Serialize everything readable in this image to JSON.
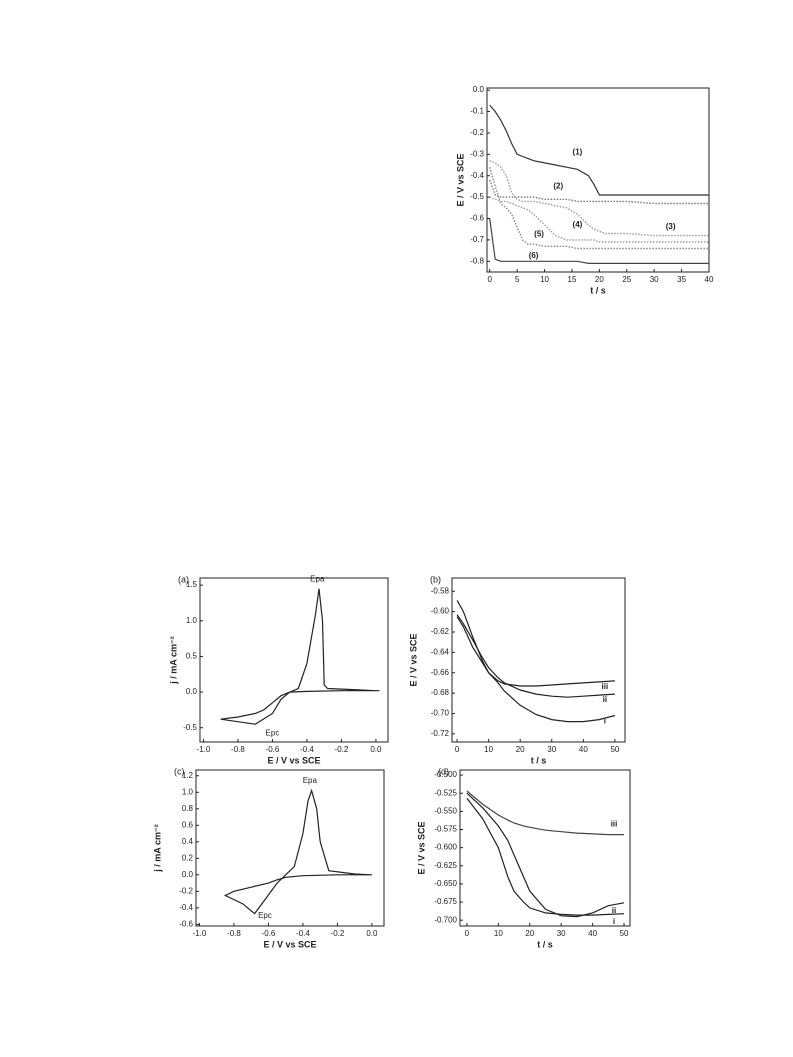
{
  "chart_data": [
    {
      "type": "line",
      "xlabel": "t / s",
      "ylabel": "E / V vs SCE",
      "xlim": [
        -0.5,
        40
      ],
      "ylim": [
        -0.85,
        0.01
      ],
      "xticks": [
        0,
        5,
        10,
        15,
        20,
        25,
        30,
        35,
        40
      ],
      "yticks": [
        {
          "value": 0,
          "label": "0.0"
        },
        -0.1,
        -0.2,
        -0.3,
        -0.4,
        -0.5,
        -0.6,
        -0.7,
        -0.8
      ],
      "series": [
        {
          "name": "(1)",
          "color": "#333333",
          "x": [
            0,
            1,
            2,
            3,
            4,
            5,
            6,
            7,
            8,
            10,
            12,
            14,
            16,
            18,
            19,
            20,
            21,
            25,
            30,
            35,
            40
          ],
          "values": [
            -0.07,
            -0.1,
            -0.14,
            -0.19,
            -0.25,
            -0.3,
            -0.31,
            -0.32,
            -0.33,
            -0.34,
            -0.35,
            -0.36,
            -0.37,
            -0.4,
            -0.44,
            -0.49,
            -0.49,
            -0.49,
            -0.49,
            -0.49,
            -0.49
          ]
        },
        {
          "name": "(2)",
          "color": "#777777",
          "x": [
            0,
            1,
            2,
            3,
            4,
            5,
            6,
            7,
            8,
            10,
            12,
            14,
            16,
            18,
            19,
            20,
            21,
            25,
            30,
            35,
            40
          ],
          "values": [
            -0.42,
            -0.49,
            -0.5,
            -0.5,
            -0.5,
            -0.5,
            -0.5,
            -0.5,
            -0.5,
            -0.51,
            -0.51,
            -0.51,
            -0.52,
            -0.52,
            -0.52,
            -0.52,
            -0.52,
            -0.52,
            -0.53,
            -0.53,
            -0.53
          ]
        },
        {
          "name": "(3)",
          "color": "#999999",
          "x": [
            0,
            1,
            2,
            3,
            4,
            5,
            6,
            7,
            8,
            10,
            12,
            14,
            16,
            18,
            19,
            20,
            21,
            25,
            30,
            35,
            40
          ],
          "values": [
            -0.33,
            -0.34,
            -0.36,
            -0.4,
            -0.48,
            -0.51,
            -0.52,
            -0.52,
            -0.52,
            -0.53,
            -0.54,
            -0.55,
            -0.58,
            -0.63,
            -0.65,
            -0.66,
            -0.67,
            -0.67,
            -0.68,
            -0.68,
            -0.68
          ]
        },
        {
          "name": "(4)",
          "color": "#999999",
          "x": [
            0,
            1,
            2,
            3,
            4,
            5,
            6,
            7,
            8,
            10,
            12,
            14,
            16,
            18,
            19,
            20,
            21,
            25,
            30,
            35,
            40
          ],
          "values": [
            -0.5,
            -0.51,
            -0.52,
            -0.52,
            -0.53,
            -0.54,
            -0.55,
            -0.56,
            -0.58,
            -0.63,
            -0.68,
            -0.7,
            -0.7,
            -0.7,
            -0.7,
            -0.71,
            -0.71,
            -0.71,
            -0.71,
            -0.71,
            -0.71
          ]
        },
        {
          "name": "(5)",
          "color": "#888888",
          "x": [
            0,
            1,
            2,
            3,
            4,
            5,
            6,
            7,
            8,
            10,
            12,
            14,
            16,
            18,
            19,
            20,
            21,
            25,
            30,
            35,
            40
          ],
          "values": [
            -0.36,
            -0.45,
            -0.53,
            -0.55,
            -0.58,
            -0.64,
            -0.7,
            -0.72,
            -0.72,
            -0.73,
            -0.73,
            -0.73,
            -0.74,
            -0.74,
            -0.74,
            -0.74,
            -0.74,
            -0.74,
            -0.74,
            -0.74,
            -0.74
          ]
        },
        {
          "name": "(6)",
          "color": "#444444",
          "x": [
            0,
            1,
            2,
            3,
            4,
            5,
            6,
            7,
            8,
            10,
            12,
            14,
            16,
            18,
            19,
            20,
            21,
            25,
            30,
            35,
            40
          ],
          "values": [
            -0.6,
            -0.79,
            -0.8,
            -0.8,
            -0.8,
            -0.8,
            -0.8,
            -0.8,
            -0.8,
            -0.8,
            -0.8,
            -0.8,
            -0.8,
            -0.81,
            -0.81,
            -0.81,
            -0.81,
            -0.81,
            -0.81,
            -0.81,
            -0.81
          ]
        }
      ]
    },
    {
      "type": "line",
      "panel_label": "(a)",
      "xlabel": "E / V vs SCE",
      "ylabel": "j / mA cm⁻²",
      "xlim": [
        -1.02,
        0.07
      ],
      "ylim": [
        -0.7,
        1.6
      ],
      "xticks": [
        {
          "value": -1,
          "label": "-1.0"
        },
        -0.8,
        -0.6,
        -0.4,
        -0.2,
        {
          "value": 0,
          "label": "0.0"
        }
      ],
      "yticks": [
        -0.5,
        {
          "value": 0,
          "label": "0.0"
        },
        0.5,
        {
          "value": 1,
          "label": "1.0"
        },
        1.5
      ],
      "annotations": [
        "Epa",
        "Epc"
      ],
      "series": [
        {
          "color": "#222222",
          "x": [
            0.02,
            -0.2,
            -0.4,
            -0.5,
            -0.55,
            -0.6,
            -0.65,
            -0.7,
            -0.8,
            -0.9,
            -0.7,
            -0.6,
            -0.55,
            -0.5,
            -0.45,
            -0.4,
            -0.35,
            -0.33,
            -0.31,
            -0.3,
            -0.28,
            -0.1,
            0.0
          ],
          "values": [
            0.02,
            0.02,
            0.01,
            0.0,
            -0.05,
            -0.15,
            -0.25,
            -0.3,
            -0.35,
            -0.38,
            -0.45,
            -0.3,
            -0.1,
            0.0,
            0.05,
            0.4,
            1.1,
            1.45,
            1.0,
            0.1,
            0.05,
            0.03,
            0.02
          ]
        }
      ]
    },
    {
      "type": "line",
      "panel_label": "(b)",
      "xlabel": "t / s",
      "ylabel": "E / V vs SCE",
      "xlim": [
        -1.6,
        53.2
      ],
      "ylim": [
        -0.728,
        -0.567
      ],
      "xticks": [
        0,
        10,
        20,
        30,
        40,
        50
      ],
      "yticks": [
        -0.58,
        {
          "value": -0.6,
          "label": "-0.60"
        },
        -0.62,
        -0.64,
        -0.66,
        -0.68,
        {
          "value": -0.7,
          "label": "-0.70"
        },
        -0.72
      ],
      "series": [
        {
          "name": "i",
          "color": "#222222",
          "x": [
            0,
            2,
            5,
            8,
            10,
            13,
            15,
            20,
            25,
            30,
            35,
            40,
            45,
            50
          ],
          "values": [
            -0.605,
            -0.615,
            -0.635,
            -0.65,
            -0.66,
            -0.67,
            -0.678,
            -0.692,
            -0.701,
            -0.706,
            -0.708,
            -0.708,
            -0.706,
            -0.702
          ]
        },
        {
          "name": "ii",
          "color": "#222222",
          "x": [
            0,
            2,
            5,
            8,
            10,
            13,
            15,
            20,
            25,
            30,
            35,
            40,
            45,
            50
          ],
          "values": [
            -0.603,
            -0.612,
            -0.628,
            -0.645,
            -0.655,
            -0.665,
            -0.67,
            -0.677,
            -0.681,
            -0.683,
            -0.684,
            -0.683,
            -0.682,
            -0.681
          ]
        },
        {
          "name": "iii",
          "color": "#222222",
          "x": [
            0,
            2,
            5,
            8,
            10,
            13,
            15,
            20,
            25,
            30,
            35,
            40,
            45,
            50
          ],
          "values": [
            -0.589,
            -0.6,
            -0.625,
            -0.648,
            -0.66,
            -0.668,
            -0.671,
            -0.673,
            -0.673,
            -0.672,
            -0.671,
            -0.67,
            -0.669,
            -0.668
          ]
        }
      ]
    },
    {
      "type": "line",
      "panel_label": "(c)",
      "xlabel": "E / V vs SCE",
      "ylabel": "j / mA cm⁻²",
      "xlim": [
        -1.02,
        0.07
      ],
      "ylim": [
        -0.62,
        1.27
      ],
      "xticks": [
        {
          "value": -1,
          "label": "-1.0"
        },
        -0.8,
        -0.6,
        -0.4,
        -0.2,
        {
          "value": 0,
          "label": "0.0"
        }
      ],
      "yticks": [
        -0.6,
        -0.4,
        -0.2,
        {
          "value": 0,
          "label": "0.0"
        },
        0.2,
        0.4,
        0.6,
        0.8,
        {
          "value": 1,
          "label": "1.0"
        },
        1.2
      ],
      "annotations": [
        "Epa",
        "Epc"
      ],
      "series": [
        {
          "color": "#222222",
          "x": [
            0.0,
            -0.2,
            -0.4,
            -0.5,
            -0.55,
            -0.6,
            -0.7,
            -0.8,
            -0.85,
            -0.75,
            -0.68,
            -0.62,
            -0.55,
            -0.5,
            -0.45,
            -0.4,
            -0.37,
            -0.35,
            -0.32,
            -0.3,
            -0.25,
            -0.1,
            0.0
          ],
          "values": [
            0.0,
            0.0,
            -0.01,
            -0.03,
            -0.06,
            -0.1,
            -0.15,
            -0.2,
            -0.25,
            -0.35,
            -0.47,
            -0.3,
            -0.1,
            0.0,
            0.1,
            0.5,
            0.9,
            1.02,
            0.8,
            0.4,
            0.05,
            0.01,
            0.0
          ]
        }
      ]
    },
    {
      "type": "line",
      "panel_label": "(d)",
      "xlabel": "t / s",
      "ylabel": "E / V vs SCE",
      "xlim": [
        -2.2,
        51.9
      ],
      "ylim": [
        -0.708,
        -0.493
      ],
      "xticks": [
        0,
        10,
        20,
        30,
        40,
        50
      ],
      "yticks": [
        {
          "value": -0.5,
          "label": "-0.500"
        },
        -0.525,
        {
          "value": -0.55,
          "label": "-0.550"
        },
        -0.575,
        {
          "value": -0.6,
          "label": "-0.600"
        },
        -0.625,
        {
          "value": -0.65,
          "label": "-0.650"
        },
        -0.675,
        {
          "value": -0.7,
          "label": "-0.700"
        }
      ],
      "series": [
        {
          "name": "i",
          "color": "#222222",
          "x": [
            0,
            5,
            10,
            13,
            15,
            18,
            20,
            25,
            30,
            35,
            40,
            45,
            50
          ],
          "values": [
            -0.532,
            -0.56,
            -0.6,
            -0.64,
            -0.66,
            -0.675,
            -0.683,
            -0.69,
            -0.692,
            -0.693,
            -0.693,
            -0.692,
            -0.691
          ]
        },
        {
          "name": "ii",
          "color": "#222222",
          "x": [
            0,
            5,
            10,
            13,
            15,
            18,
            20,
            25,
            30,
            35,
            40,
            45,
            50
          ],
          "values": [
            -0.525,
            -0.545,
            -0.57,
            -0.59,
            -0.61,
            -0.64,
            -0.66,
            -0.685,
            -0.694,
            -0.695,
            -0.69,
            -0.68,
            -0.676
          ]
        },
        {
          "name": "iii",
          "color": "#444444",
          "x": [
            0,
            5,
            10,
            13,
            15,
            18,
            20,
            25,
            30,
            35,
            40,
            45,
            50
          ],
          "values": [
            -0.522,
            -0.54,
            -0.555,
            -0.562,
            -0.566,
            -0.57,
            -0.572,
            -0.576,
            -0.578,
            -0.58,
            -0.581,
            -0.582,
            -0.582
          ]
        }
      ]
    }
  ]
}
